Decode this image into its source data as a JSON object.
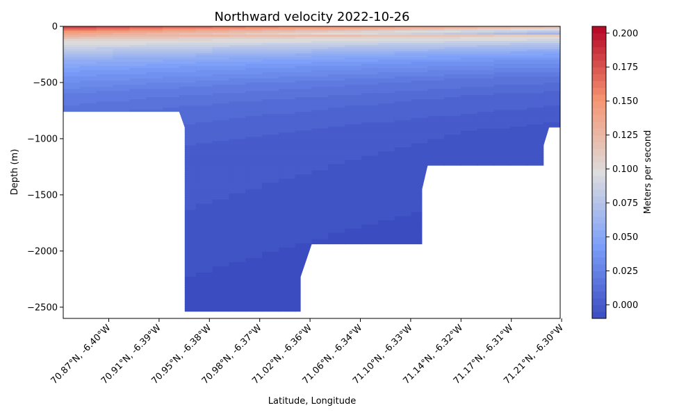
{
  "chart_data": {
    "type": "contour",
    "title": "Northward velocity 2022-10-26",
    "xlabel": "Latitude, Longitude",
    "ylabel": "Depth (m)",
    "ylim": [
      -2600,
      0
    ],
    "y_ticks": [
      0,
      -500,
      -1000,
      -1500,
      -2000,
      -2500
    ],
    "y_tick_labels": [
      "0",
      "−500",
      "−1000",
      "−1500",
      "−2000",
      "−2500"
    ],
    "x_tick_labels": [
      "70.87°N, -6.40°W",
      "70.91°N, -6.39°W",
      "70.95°N, -6.38°W",
      "70.98°N, -6.37°W",
      "71.02°N, -6.36°W",
      "71.06°N, -6.34°W",
      "71.10°N, -6.33°W",
      "71.14°N, -6.32°W",
      "71.17°N, -6.31°W",
      "71.21°N, -6.30°W"
    ],
    "colorbar": {
      "label": "Meters per second",
      "vmin": -0.01,
      "vmax": 0.205,
      "ticks": [
        0.0,
        0.025,
        0.05,
        0.075,
        0.1,
        0.125,
        0.15,
        0.175,
        0.2
      ],
      "tick_labels": [
        "0.000",
        "0.025",
        "0.050",
        "0.075",
        "0.100",
        "0.125",
        "0.150",
        "0.175",
        "0.200"
      ]
    },
    "grid": false,
    "colormap": "coolwarm",
    "velocity_profile": [
      {
        "depth": 0,
        "value": 0.19
      },
      {
        "depth": -50,
        "value": 0.15
      },
      {
        "depth": -120,
        "value": 0.11
      },
      {
        "depth": -200,
        "value": 0.085
      },
      {
        "depth": -300,
        "value": 0.06
      },
      {
        "depth": -400,
        "value": 0.045
      },
      {
        "depth": -500,
        "value": 0.035
      },
      {
        "depth": -600,
        "value": 0.025
      },
      {
        "depth": -800,
        "value": 0.015
      },
      {
        "depth": -1200,
        "value": 0.005
      },
      {
        "depth": -2000,
        "value": 0.0
      },
      {
        "depth": -2600,
        "value": -0.005
      }
    ],
    "bottom_profile": [
      {
        "x": 0.0,
        "depth": -760
      },
      {
        "x": 2.1,
        "depth": -760
      },
      {
        "x": 2.2,
        "depth": -900
      },
      {
        "x": 2.2,
        "depth": -2540
      },
      {
        "x": 4.3,
        "depth": -2540
      },
      {
        "x": 4.3,
        "depth": -2230
      },
      {
        "x": 4.5,
        "depth": -1940
      },
      {
        "x": 6.5,
        "depth": -1940
      },
      {
        "x": 6.5,
        "depth": -1450
      },
      {
        "x": 6.6,
        "depth": -1240
      },
      {
        "x": 8.7,
        "depth": -1240
      },
      {
        "x": 8.7,
        "depth": -1060
      },
      {
        "x": 8.8,
        "depth": -900
      },
      {
        "x": 9.0,
        "depth": -900
      }
    ]
  }
}
